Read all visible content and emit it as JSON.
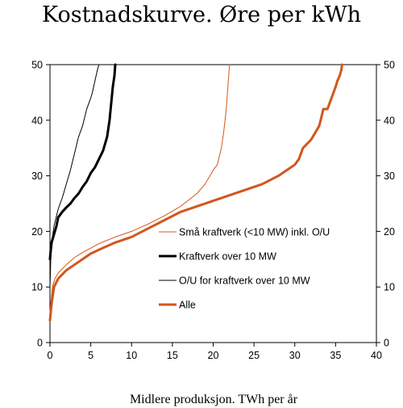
{
  "chart_data": {
    "type": "line",
    "title": "Kostnadskurve. Øre per kWh",
    "xlabel": "Midlere produksjon. TWh per år",
    "ylabel": "",
    "xlim": [
      0,
      40
    ],
    "ylim": [
      0,
      50
    ],
    "xticks": [
      0,
      5,
      10,
      15,
      20,
      25,
      30,
      35,
      40
    ],
    "yticks": [
      0,
      10,
      20,
      30,
      40,
      50
    ],
    "right_axis_ticks": [
      0,
      10,
      20,
      30,
      40,
      50
    ],
    "grid": false,
    "legend_position": "inside-center-right",
    "series": [
      {
        "name": "Små kraftverk (<10 MW) inkl. O/U",
        "color": "#D2561C",
        "width": 1,
        "x": [
          0.0,
          0.1,
          0.3,
          0.6,
          1,
          2,
          3,
          4,
          5,
          6,
          8,
          10,
          12,
          14,
          16,
          18,
          19,
          20,
          20.5,
          21,
          21.3,
          21.6,
          21.8,
          22
        ],
        "y": [
          5,
          7,
          10,
          11.5,
          12.5,
          14,
          15.3,
          16.2,
          17,
          17.8,
          19,
          20,
          21.3,
          22.8,
          24.5,
          26.8,
          28.5,
          31,
          32,
          35,
          38,
          42,
          46,
          50
        ]
      },
      {
        "name": "Kraftverk over 10 MW",
        "color": "#000000",
        "width": 3,
        "x": [
          0.0,
          0.05,
          0.2,
          0.5,
          0.8,
          1,
          1.5,
          2,
          2.5,
          3,
          3.5,
          4,
          4.5,
          5,
          5.5,
          6,
          6.5,
          7,
          7.3,
          7.5,
          7.7,
          7.9,
          8.0
        ],
        "y": [
          15,
          16,
          18,
          19.5,
          21,
          22.5,
          23.5,
          24.3,
          25,
          26,
          26.8,
          28,
          29,
          30.5,
          31.5,
          33,
          34.5,
          37,
          40,
          43,
          46,
          48,
          50
        ]
      },
      {
        "name": "O/U for kraftverk over 10 MW",
        "color": "#000000",
        "width": 1,
        "x": [
          0.0,
          0.1,
          0.3,
          0.5,
          1,
          1.5,
          2,
          2.5,
          3,
          3.5,
          4,
          4.5,
          5,
          5.2,
          5.5,
          5.8,
          6
        ],
        "y": [
          10,
          15,
          19,
          21,
          24,
          26,
          28.5,
          31,
          34,
          37,
          39,
          42,
          44,
          45,
          47,
          49,
          50
        ]
      },
      {
        "name": "Alle",
        "color": "#D2561C",
        "width": 3,
        "x": [
          0.0,
          0.1,
          0.2,
          0.3,
          0.5,
          1,
          2,
          3,
          4,
          5,
          6,
          8,
          10,
          12,
          14,
          16,
          18,
          20,
          22,
          24,
          26,
          28,
          29,
          30,
          30.5,
          31,
          32,
          33,
          33.5,
          34,
          34.5,
          35,
          35.2,
          35.5,
          35.7,
          35.8
        ],
        "y": [
          4,
          5.5,
          7,
          8,
          10,
          11.5,
          13,
          14,
          15,
          16,
          16.7,
          18,
          19,
          20.5,
          22,
          23.5,
          24.5,
          25.5,
          26.5,
          27.5,
          28.5,
          30,
          31,
          32,
          33,
          35,
          36.5,
          39,
          42,
          42,
          44,
          46,
          47,
          48,
          49,
          50
        ]
      }
    ]
  }
}
